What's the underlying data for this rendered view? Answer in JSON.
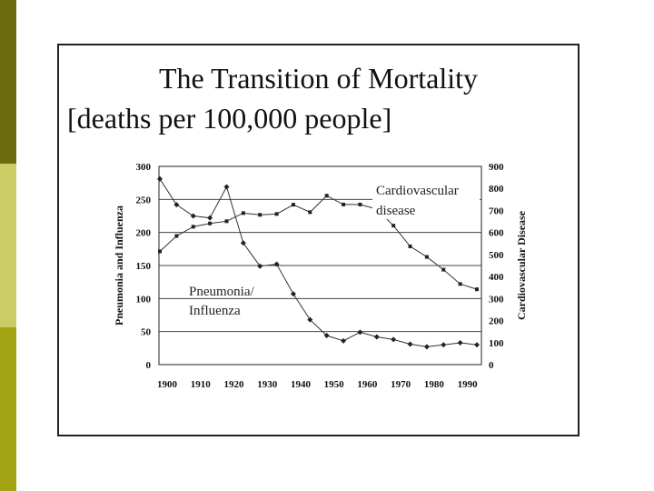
{
  "slide": {
    "title_line1": "The Transition of Mortality",
    "title_line2": "[deaths per 100,000 people]",
    "strip_colors": [
      "#6b6b10",
      "#cccc66",
      "#a3a315"
    ]
  },
  "chart_data": {
    "type": "line",
    "title": "The Transition of Mortality [deaths per 100,000 people]",
    "xlabel": "",
    "ylabel_left": "Pneumonia and Influenza",
    "ylabel_right": "Cardiovascular Disease",
    "xlim": [
      1900,
      1995
    ],
    "ylim_left": [
      0,
      300
    ],
    "ylim_right": [
      0,
      900
    ],
    "x_ticks": [
      "1900",
      "1910",
      "1920",
      "1930",
      "1940",
      "1950",
      "1960",
      "1970",
      "1980",
      "1990"
    ],
    "y_left_ticks": [
      "0",
      "50",
      "100",
      "150",
      "200",
      "250",
      "300"
    ],
    "y_right_ticks": [
      "0",
      "100",
      "200",
      "300",
      "400",
      "500",
      "600",
      "700",
      "800",
      "900"
    ],
    "grid": true,
    "series": [
      {
        "name": "Pneumonia/Influenza",
        "axis": "left",
        "marker": "diamond",
        "x": [
          1900,
          1905,
          1910,
          1915,
          1920,
          1925,
          1930,
          1935,
          1940,
          1945,
          1950,
          1955,
          1960,
          1965,
          1970,
          1975,
          1980,
          1985,
          1990,
          1995
        ],
        "values": [
          281,
          242,
          225,
          222,
          269,
          184,
          149,
          152,
          107,
          68,
          44,
          36,
          49,
          42,
          38,
          31,
          27,
          30,
          33,
          30
        ]
      },
      {
        "name": "Cardiovascular disease",
        "axis": "right",
        "marker": "square",
        "x": [
          1900,
          1905,
          1910,
          1915,
          1920,
          1925,
          1930,
          1935,
          1940,
          1945,
          1950,
          1955,
          1960,
          1965,
          1970,
          1975,
          1980,
          1985,
          1990,
          1995
        ],
        "values": [
          514,
          584,
          626,
          641,
          651,
          688,
          680,
          684,
          726,
          692,
          767,
          727,
          727,
          706,
          631,
          537,
          489,
          431,
          366,
          342
        ]
      }
    ],
    "annotations": [
      {
        "text_lines": [
          "Pneumonia/",
          "Influenza"
        ],
        "near": "Pneumonia/Influenza"
      },
      {
        "text_lines": [
          "Cardiovascular",
          "disease"
        ],
        "near": "Cardiovascular disease"
      }
    ]
  }
}
